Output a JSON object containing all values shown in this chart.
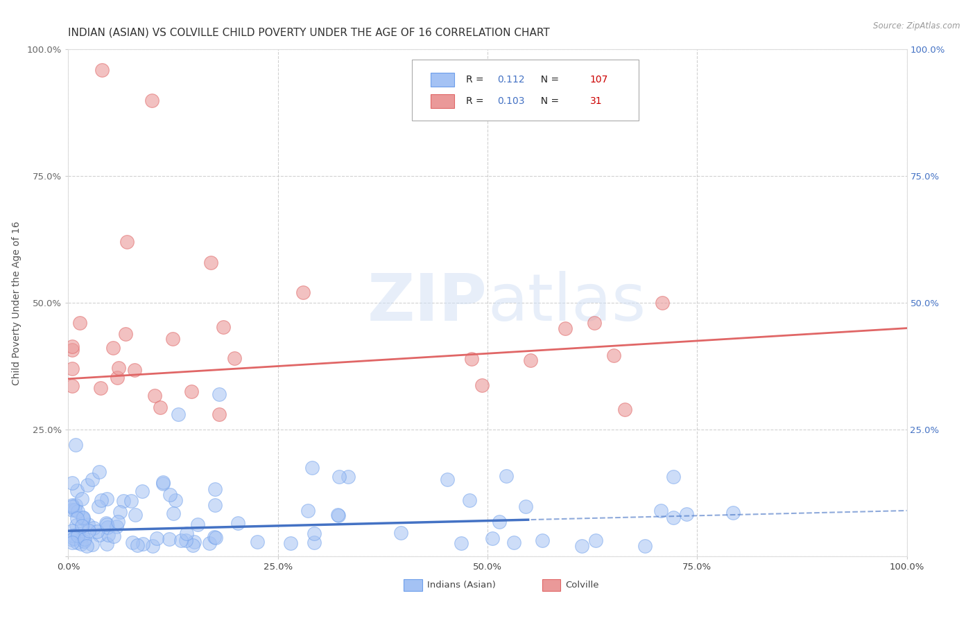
{
  "title": "INDIAN (ASIAN) VS COLVILLE CHILD POVERTY UNDER THE AGE OF 16 CORRELATION CHART",
  "source": "Source: ZipAtlas.com",
  "ylabel": "Child Poverty Under the Age of 16",
  "xlim": [
    0,
    1
  ],
  "ylim": [
    0,
    1
  ],
  "xticklabels": [
    "0.0%",
    "25.0%",
    "50.0%",
    "75.0%",
    "100.0%"
  ],
  "yticklabels_left": [
    "",
    "25.0%",
    "50.0%",
    "75.0%",
    "100.0%"
  ],
  "yticklabels_right": [
    "",
    "25.0%",
    "50.0%",
    "75.0%",
    "100.0%"
  ],
  "legend_R1": "0.112",
  "legend_N1": "107",
  "legend_R2": "0.103",
  "legend_N2": "31",
  "color_indian": "#a4c2f4",
  "color_colville": "#ea9999",
  "color_indian_edge": "#6d9eeb",
  "color_colville_edge": "#e06666",
  "color_indian_line": "#4472c4",
  "color_colville_line": "#e06666",
  "background_color": "#ffffff",
  "grid_color": "#cccccc",
  "title_fontsize": 11,
  "axis_label_fontsize": 10,
  "tick_fontsize": 9.5,
  "right_tick_color": "#4472c4",
  "watermark_color": "#d0dff5",
  "watermark_alpha": 0.5
}
